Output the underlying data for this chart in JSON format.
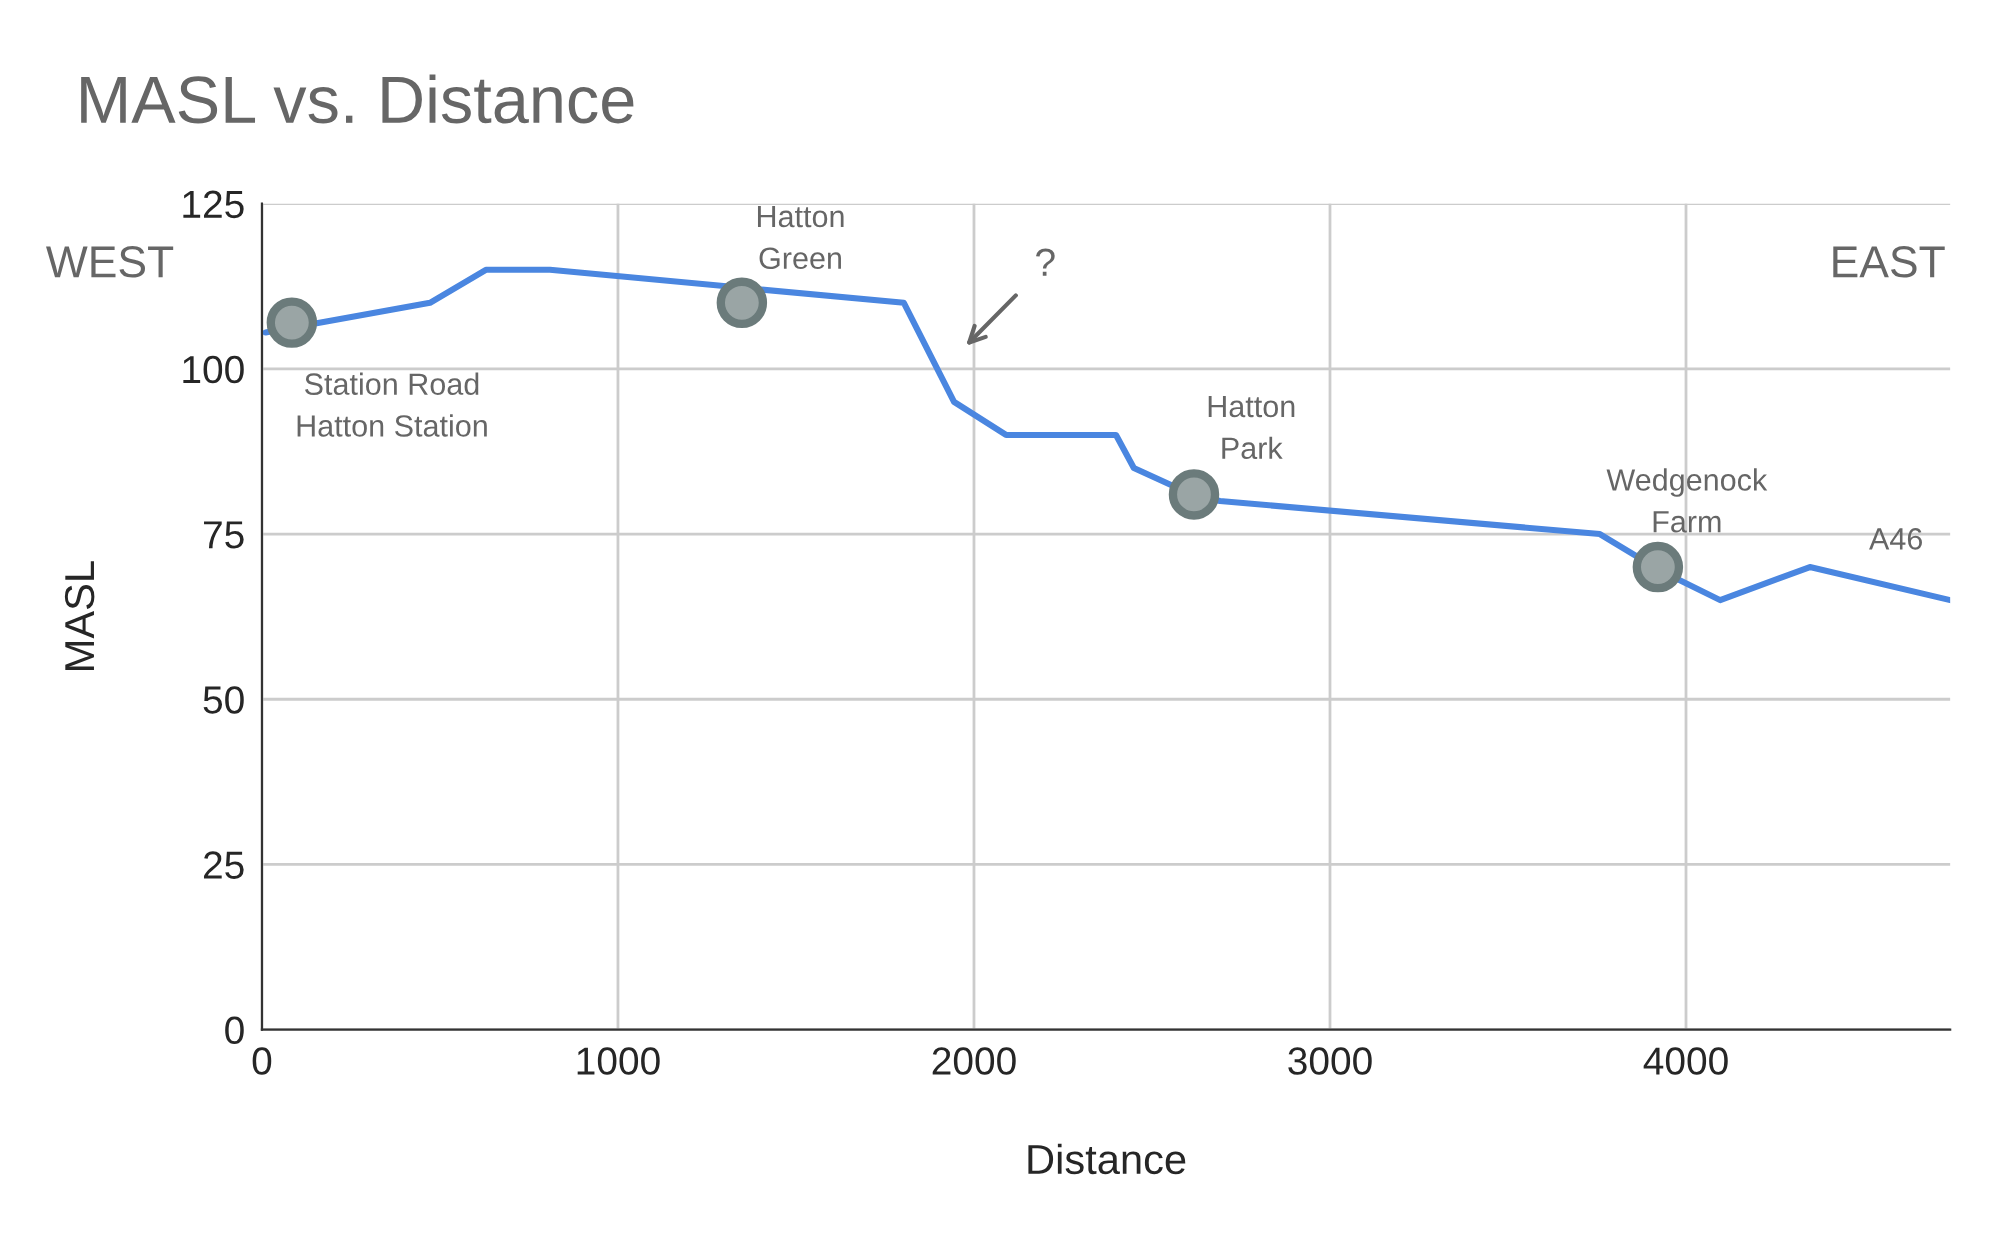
{
  "chart_data": {
    "type": "line",
    "title": "MASL vs. Distance",
    "xlabel": "Distance",
    "ylabel": "MASL",
    "series": [
      {
        "color": "#4a86e0",
        "marker": "none",
        "x": [
          10,
          472,
          629,
          809,
          1803,
          1944,
          2090,
          2399,
          2449,
          2612,
          2691,
          3758,
          3927,
          4096,
          4348,
          4742
        ],
        "values": [
          105.5,
          110,
          115,
          115,
          110,
          95,
          90,
          90,
          85,
          81,
          80,
          75,
          69.5,
          65,
          70,
          65
        ]
      },
      {
        "type": "scatter",
        "color": "#6b7b7b",
        "marker": "circle",
        "x": [
          84,
          1348,
          2618,
          3921
        ],
        "values": [
          107,
          110,
          81,
          70
        ]
      }
    ],
    "annotations": [
      "WEST",
      "EAST",
      "Station Road\nHatton Station",
      "Hatton\nGreen",
      "?",
      "Hatton\nPark",
      "Wedgenock\nFarm",
      "A46"
    ],
    "xlim": [
      0,
      4742
    ],
    "xticks": [
      0,
      1000,
      2000,
      3000,
      4000
    ],
    "ylim": [
      0,
      125
    ],
    "yticks": [
      0,
      25,
      50,
      75,
      100,
      125
    ],
    "grid": true,
    "legend": false
  }
}
